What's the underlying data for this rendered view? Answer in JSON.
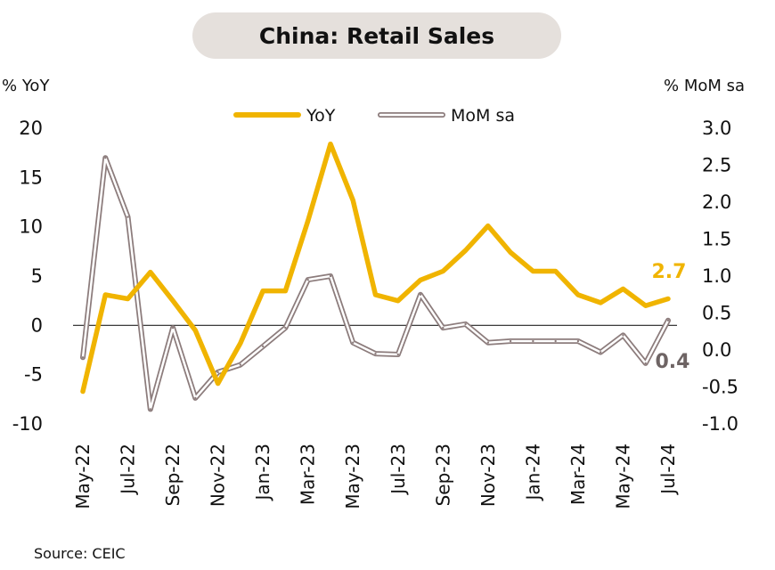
{
  "title": "China: Retail Sales",
  "left_axis_label": "% YoY",
  "right_axis_label": "% MoM sa",
  "source": "Source: CEIC",
  "colors": {
    "yoy": "#f0b400",
    "mom_outer": "#8c7c7c",
    "mom_inner": "#ffffff",
    "zero_line": "#222222",
    "last_yoy_label": "#f0b400",
    "last_mom_label": "#6e6464"
  },
  "chart_data": {
    "type": "line",
    "title": "China: Retail Sales",
    "x": [
      "May-22",
      "Jun-22",
      "Jul-22",
      "Aug-22",
      "Sep-22",
      "Oct-22",
      "Nov-22",
      "Dec-22",
      "Jan-23",
      "Feb-23",
      "Mar-23",
      "Apr-23",
      "May-23",
      "Jun-23",
      "Jul-23",
      "Aug-23",
      "Sep-23",
      "Oct-23",
      "Nov-23",
      "Dec-23",
      "Jan-24",
      "Feb-24",
      "Mar-24",
      "Apr-24",
      "May-24",
      "Jun-24",
      "Jul-24"
    ],
    "x_tick_labels": [
      "May-22",
      "Jul-22",
      "Sep-22",
      "Nov-22",
      "Jan-23",
      "Mar-23",
      "May-23",
      "Jul-23",
      "Sep-23",
      "Nov-23",
      "Jan-24",
      "Mar-24",
      "May-24",
      "Jul-24"
    ],
    "series": [
      {
        "name": "YoY",
        "axis": "left",
        "values": [
          -6.7,
          3.1,
          2.7,
          5.4,
          2.5,
          -0.5,
          -5.9,
          -1.8,
          3.5,
          3.5,
          10.6,
          18.4,
          12.7,
          3.1,
          2.5,
          4.6,
          5.5,
          7.6,
          10.1,
          7.4,
          5.5,
          5.5,
          3.1,
          2.3,
          3.7,
          2.0,
          2.7
        ]
      },
      {
        "name": "MoM sa",
        "axis": "right",
        "values": [
          -0.1,
          2.6,
          1.8,
          -0.8,
          0.3,
          -0.65,
          -0.3,
          -0.2,
          0.05,
          0.3,
          0.95,
          1.0,
          0.1,
          -0.05,
          -0.06,
          0.75,
          0.3,
          0.35,
          0.1,
          0.12,
          0.12,
          0.12,
          0.12,
          -0.03,
          0.2,
          -0.18,
          0.4
        ]
      }
    ],
    "left_axis": {
      "label": "% YoY",
      "ylim": [
        -10,
        20
      ],
      "ticks": [
        "20",
        "15",
        "10",
        "5",
        "0",
        "-5",
        "-10"
      ]
    },
    "right_axis": {
      "label": "% MoM sa",
      "ylim": [
        -1.0,
        3.0
      ],
      "ticks": [
        "3.0",
        "2.5",
        "2.0",
        "1.5",
        "1.0",
        "0.5",
        "0.0",
        "-0.5",
        "-1.0"
      ]
    },
    "last_labels": {
      "yoy": "2.7",
      "mom": "0.4"
    },
    "legend": {
      "placement": "top-center",
      "entries": [
        "YoY",
        "MoM sa"
      ]
    },
    "grid": false
  }
}
